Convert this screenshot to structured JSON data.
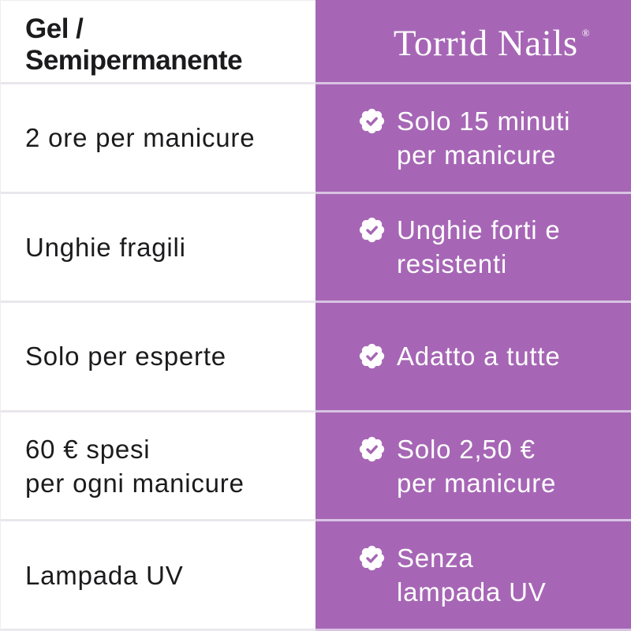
{
  "header": {
    "left_title": "Gel / Semipermanente"
  },
  "brand": {
    "logo_text": "Torrid Nails",
    "registered_mark": "®"
  },
  "icons": {
    "row_bullet": "verified-check-seal-badge"
  },
  "colors": {
    "purple": "#a666b5",
    "purple_divider": "#d8c3e2",
    "gray_divider": "#e9e6ec",
    "left_bg": "#ffffff",
    "left_text": "#1b1b1d",
    "right_text": "#ffffff"
  },
  "comparison": {
    "rows": [
      {
        "left_lines": [
          "2 ore per manicure"
        ],
        "right_lines": [
          "Solo 15 minuti",
          "per manicure"
        ]
      },
      {
        "left_lines": [
          "Unghie fragili"
        ],
        "right_lines": [
          "Unghie forti e",
          "resistenti"
        ]
      },
      {
        "left_lines": [
          "Solo per esperte"
        ],
        "right_lines": [
          "Adatto a tutte"
        ]
      },
      {
        "left_lines": [
          "60 € spesi",
          "per ogni manicure"
        ],
        "right_lines": [
          "Solo 2,50 €",
          "per manicure"
        ]
      },
      {
        "left_lines": [
          "Lampada UV"
        ],
        "right_lines": [
          "Senza",
          "lampada UV"
        ]
      }
    ]
  }
}
